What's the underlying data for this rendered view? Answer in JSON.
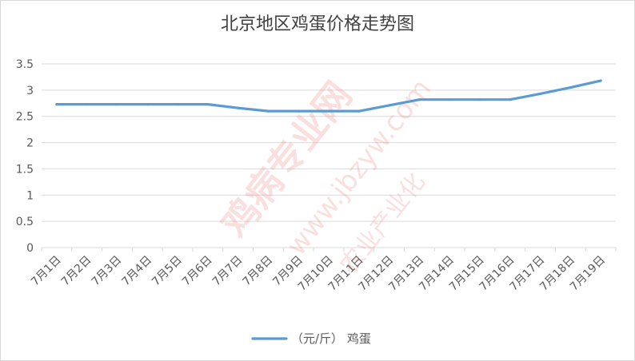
{
  "chart_data": {
    "type": "line",
    "title": "北京地区鸡蛋价格走势图",
    "categories": [
      "7月1日",
      "7月2日",
      "7月3日",
      "7月4日",
      "7月5日",
      "7月6日",
      "7月7日",
      "7月8日",
      "7月9日",
      "7月10日",
      "7月11日",
      "7月12日",
      "7月13日",
      "7月14日",
      "7月15日",
      "7月16日",
      "7月17日",
      "7月18日",
      "7月19日"
    ],
    "series": [
      {
        "name": "（元/斤） 鸡蛋",
        "values": [
          2.73,
          2.73,
          2.73,
          2.73,
          2.73,
          2.73,
          2.66,
          2.6,
          2.6,
          2.6,
          2.6,
          2.71,
          2.82,
          2.82,
          2.82,
          2.82,
          2.93,
          3.05,
          3.18
        ],
        "color": "#5b9bd5"
      }
    ],
    "yticks": [
      "0",
      "0.5",
      "1",
      "1.5",
      "2",
      "2.5",
      "3",
      "3.5"
    ],
    "ylim": [
      0,
      3.5
    ],
    "grid": true,
    "legend_position": "bottom"
  },
  "watermark": {
    "main": "鸡病专业网",
    "url": "www.jbzyw.com",
    "sub": "农业产业化",
    "color": "#e8736c"
  }
}
